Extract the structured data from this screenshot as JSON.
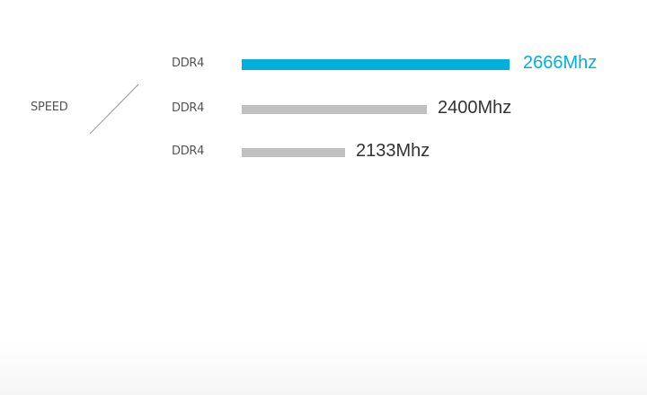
{
  "chart_data": {
    "type": "bar",
    "orientation": "horizontal",
    "title": "",
    "category_axis_label": "SPEED",
    "categories": [
      "DDR4",
      "DDR4",
      "DDR4"
    ],
    "values": [
      2666,
      2400,
      2133
    ],
    "value_labels": [
      "2666Mhz",
      "2400Mhz",
      "2133Mhz"
    ],
    "unit": "Mhz",
    "xlim": [
      0,
      2666
    ],
    "grid": false,
    "legend": "none",
    "highlight_index": 0,
    "colors": {
      "highlight": "#00b0dc",
      "default": "#c0c0c0",
      "label_text": "#555555",
      "value_text": "#333333"
    }
  }
}
